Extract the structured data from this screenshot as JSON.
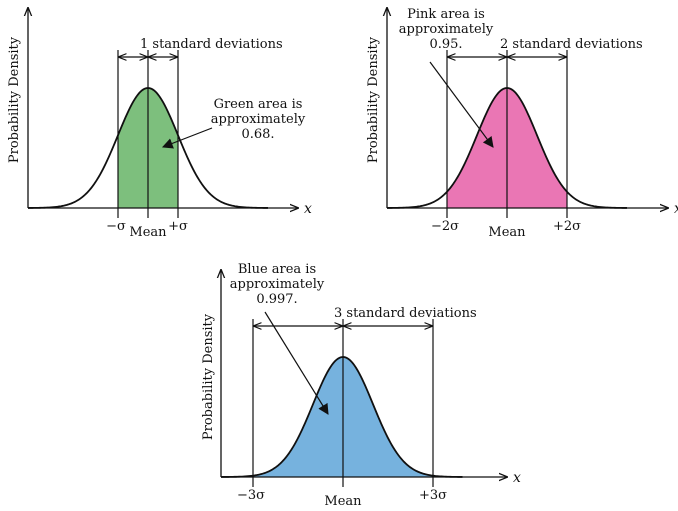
{
  "chart_data": [
    {
      "type": "area",
      "ylabel": "Probability Density",
      "xlabel": "x",
      "mean_label": "Mean",
      "sigma_multiple": 1,
      "fill_color": "#7dbf7d",
      "tick_labels": [
        "−σ",
        "+σ"
      ],
      "span_label": "1 standard deviations",
      "annotation": [
        "Green area is",
        "approximately",
        "0.68."
      ],
      "area_fraction": 0.68
    },
    {
      "type": "area",
      "ylabel": "Probability Density",
      "xlabel": "x",
      "mean_label": "Mean",
      "sigma_multiple": 2,
      "fill_color": "#ea76b4",
      "tick_labels": [
        "−2σ",
        "+2σ"
      ],
      "span_label": "2 standard deviations",
      "annotation": [
        "Pink area is",
        "approximately",
        "0.95."
      ],
      "area_fraction": 0.95
    },
    {
      "type": "area",
      "ylabel": "Probability Density",
      "xlabel": "x",
      "mean_label": "Mean",
      "sigma_multiple": 3,
      "fill_color": "#76b2de",
      "tick_labels": [
        "−3σ",
        "+3σ"
      ],
      "span_label": "3 standard deviations",
      "annotation": [
        "Blue area is",
        "approximately",
        "0.997."
      ],
      "area_fraction": 0.997
    }
  ]
}
